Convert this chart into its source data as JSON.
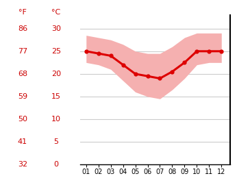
{
  "months": [
    1,
    2,
    3,
    4,
    5,
    6,
    7,
    8,
    9,
    10,
    11,
    12
  ],
  "month_labels": [
    "01",
    "02",
    "03",
    "04",
    "05",
    "06",
    "07",
    "08",
    "09",
    "10",
    "11",
    "12"
  ],
  "mean_temp": [
    25.0,
    24.5,
    24.0,
    22.0,
    20.0,
    19.5,
    19.0,
    20.5,
    22.5,
    25.0,
    25.0,
    25.0
  ],
  "upper_band": [
    28.5,
    28.0,
    27.5,
    26.5,
    25.0,
    24.5,
    24.5,
    26.0,
    28.0,
    29.0,
    29.0,
    29.0
  ],
  "lower_band": [
    22.5,
    22.0,
    21.0,
    18.5,
    16.0,
    15.0,
    14.5,
    16.5,
    19.0,
    22.0,
    22.5,
    22.5
  ],
  "line_color": "#dd0000",
  "band_color": "#f5b0b0",
  "axis_color": "#cc0000",
  "grid_color": "#cccccc",
  "bg_color": "#ffffff",
  "label_F": "°F",
  "label_C": "°C",
  "yticks_c": [
    0,
    5,
    10,
    15,
    20,
    25,
    30
  ],
  "yticks_f": [
    32,
    41,
    50,
    59,
    68,
    77,
    86
  ],
  "ylim_c": [
    0,
    33
  ],
  "xlim": [
    0.5,
    12.7
  ]
}
